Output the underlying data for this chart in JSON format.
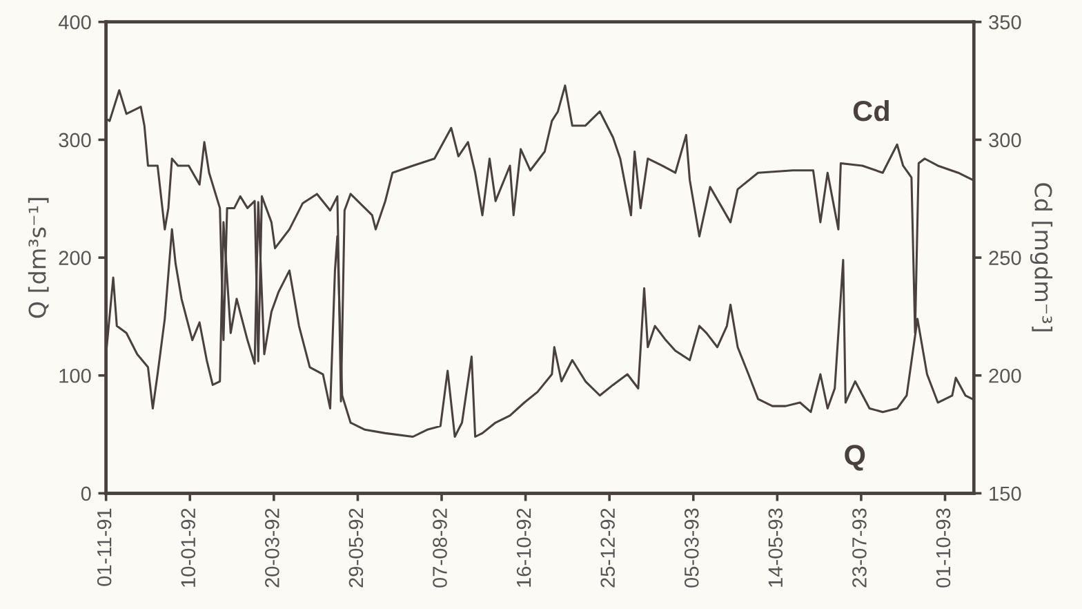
{
  "chart_data": {
    "type": "line",
    "ylabel": "Q [dm³s⁻¹]",
    "y2label": "Cd [mgdm⁻³]",
    "xlim": [
      "1991-11-01",
      "1993-10-25"
    ],
    "xticks": [
      {
        "value": "1991-11-01",
        "label": "01-11-91"
      },
      {
        "value": "1992-01-10",
        "label": "10-01-92"
      },
      {
        "value": "1992-03-20",
        "label": "20-03-92"
      },
      {
        "value": "1992-05-29",
        "label": "29-05-92"
      },
      {
        "value": "1992-08-07",
        "label": "07-08-92"
      },
      {
        "value": "1992-10-16",
        "label": "16-10-92"
      },
      {
        "value": "1992-12-25",
        "label": "25-12-92"
      },
      {
        "value": "1993-03-05",
        "label": "05-03-93"
      },
      {
        "value": "1993-05-14",
        "label": "14-05-93"
      },
      {
        "value": "1993-07-23",
        "label": "23-07-93"
      },
      {
        "value": "1993-10-01",
        "label": "01-10-93"
      }
    ],
    "ylim": [
      0,
      400
    ],
    "yticks": [
      0,
      100,
      200,
      300,
      400
    ],
    "y2lim": [
      150,
      350
    ],
    "y2ticks": [
      150,
      200,
      250,
      300,
      350
    ],
    "grid": false,
    "legend": false,
    "marker": "none",
    "line_style": "solid",
    "series": [
      {
        "name": "Cd",
        "axis": "y2",
        "color": "#4a4040",
        "x": [
          "1991-11-01",
          "1991-11-04",
          "1991-11-12",
          "1991-11-18",
          "1991-11-30",
          "1991-12-03",
          "1991-12-06",
          "1991-12-14",
          "1991-12-20",
          "1991-12-23",
          "1991-12-26",
          "1991-12-31",
          "1992-01-09",
          "1992-01-18",
          "1992-01-22",
          "1992-01-26",
          "1992-02-04",
          "1992-02-07",
          "1992-02-10",
          "1992-02-16",
          "1992-02-21",
          "1992-02-27",
          "1992-03-04",
          "1992-03-07",
          "1992-03-10",
          "1992-03-18",
          "1992-03-21",
          "1992-03-27",
          "1992-04-02",
          "1992-04-13",
          "1992-04-25",
          "1992-05-06",
          "1992-05-12",
          "1992-05-15",
          "1992-05-18",
          "1992-05-23",
          "1992-05-29",
          "1992-06-10",
          "1992-06-13",
          "1992-06-21",
          "1992-06-27",
          "1992-07-14",
          "1992-08-01",
          "1992-08-15",
          "1992-08-21",
          "1992-08-29",
          "1992-09-04",
          "1992-09-10",
          "1992-09-16",
          "1992-09-21",
          "1992-10-03",
          "1992-10-06",
          "1992-10-12",
          "1992-10-20",
          "1992-11-01",
          "1992-11-07",
          "1992-11-12",
          "1992-11-18",
          "1992-11-24",
          "1992-12-05",
          "1992-12-17",
          "1992-12-28",
          "1993-01-03",
          "1993-01-12",
          "1993-01-15",
          "1993-01-20",
          "1993-01-26",
          "1993-02-07",
          "1993-02-18",
          "1993-02-27",
          "1993-03-02",
          "1993-03-10",
          "1993-03-19",
          "1993-04-05",
          "1993-04-11",
          "1993-04-28",
          "1993-05-27",
          "1993-06-13",
          "1993-06-19",
          "1993-06-25",
          "1993-07-04",
          "1993-07-06",
          "1993-07-24",
          "1993-08-10",
          "1993-08-22",
          "1993-08-27",
          "1993-09-03",
          "1993-09-06",
          "1993-09-09",
          "1993-09-14",
          "1993-09-25",
          "1993-10-12",
          "1993-10-24"
        ],
        "values": [
          309,
          308,
          321,
          311,
          314,
          306,
          289,
          289,
          262,
          271,
          292,
          289,
          289,
          281,
          299,
          286,
          271,
          215,
          271,
          271,
          276,
          271,
          274,
          206,
          276,
          265,
          254,
          258,
          262,
          273,
          277,
          270,
          276,
          189,
          270,
          277,
          274,
          268,
          262,
          274,
          286,
          289,
          292,
          305,
          293,
          299,
          286,
          268,
          292,
          274,
          289,
          268,
          296,
          287,
          295,
          308,
          312,
          323,
          306,
          306,
          312,
          301,
          292,
          268,
          295,
          271,
          292,
          289,
          286,
          302,
          283,
          259,
          280,
          265,
          279,
          286,
          287,
          287,
          265,
          286,
          262,
          290,
          289,
          286,
          298,
          289,
          284,
          218,
          290,
          292,
          289,
          286,
          283
        ]
      },
      {
        "name": "Q",
        "axis": "y",
        "color": "#4a4040",
        "x": [
          "1991-11-01",
          "1991-11-07",
          "1991-11-10",
          "1991-11-18",
          "1991-11-27",
          "1991-12-06",
          "1991-12-10",
          "1991-12-14",
          "1991-12-20",
          "1991-12-26",
          "1991-12-29",
          "1992-01-03",
          "1992-01-12",
          "1992-01-18",
          "1992-01-24",
          "1992-01-29",
          "1992-02-04",
          "1992-02-07",
          "1992-02-13",
          "1992-02-18",
          "1992-02-27",
          "1992-03-04",
          "1992-03-07",
          "1992-03-12",
          "1992-03-18",
          "1992-03-24",
          "1992-04-02",
          "1992-04-10",
          "1992-04-19",
          "1992-04-30",
          "1992-05-06",
          "1992-05-10",
          "1992-05-12",
          "1992-05-16",
          "1992-05-23",
          "1992-06-04",
          "1992-06-21",
          "1992-07-14",
          "1992-07-26",
          "1992-08-06",
          "1992-08-12",
          "1992-08-18",
          "1992-08-24",
          "1992-09-01",
          "1992-09-04",
          "1992-09-10",
          "1992-09-21",
          "1992-10-03",
          "1992-10-15",
          "1992-10-26",
          "1992-11-07",
          "1992-11-09",
          "1992-11-15",
          "1992-11-24",
          "1992-12-05",
          "1992-12-17",
          "1992-12-28",
          "1993-01-09",
          "1993-01-18",
          "1993-01-23",
          "1993-01-26",
          "1993-02-01",
          "1993-02-10",
          "1993-02-18",
          "1993-03-02",
          "1993-03-10",
          "1993-03-16",
          "1993-03-25",
          "1993-04-02",
          "1993-04-05",
          "1993-04-11",
          "1993-04-20",
          "1993-04-28",
          "1993-05-10",
          "1993-05-21",
          "1993-06-02",
          "1993-06-11",
          "1993-06-19",
          "1993-06-25",
          "1993-07-01",
          "1993-07-08",
          "1993-07-10",
          "1993-07-18",
          "1993-07-30",
          "1993-08-10",
          "1993-08-22",
          "1993-08-30",
          "1993-09-08",
          "1993-09-16",
          "1993-09-25",
          "1993-10-07",
          "1993-10-10",
          "1993-10-18",
          "1993-10-24"
        ],
        "values": [
          118,
          183,
          142,
          136,
          118,
          107,
          72,
          101,
          148,
          224,
          195,
          165,
          130,
          145,
          113,
          92,
          95,
          230,
          136,
          165,
          130,
          110,
          247,
          118,
          154,
          171,
          189,
          142,
          107,
          101,
          72,
          189,
          218,
          83,
          60,
          54,
          51,
          48,
          54,
          57,
          104,
          48,
          60,
          116,
          48,
          51,
          60,
          66,
          77,
          86,
          101,
          124,
          95,
          113,
          95,
          83,
          92,
          101,
          89,
          174,
          124,
          142,
          130,
          121,
          113,
          142,
          136,
          124,
          142,
          160,
          124,
          101,
          80,
          74,
          74,
          77,
          69,
          101,
          72,
          89,
          198,
          77,
          95,
          72,
          69,
          72,
          83,
          148,
          101,
          77,
          83,
          98,
          83,
          80
        ]
      }
    ]
  }
}
